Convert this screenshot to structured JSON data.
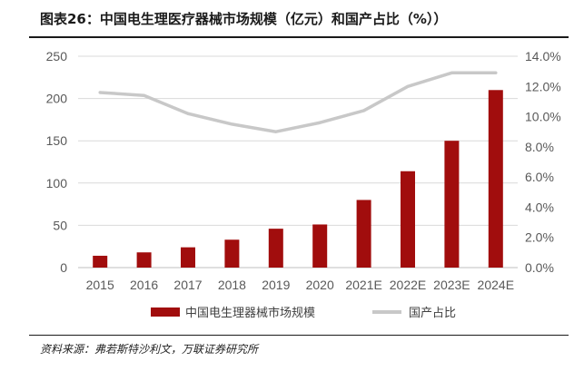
{
  "title": "图表26：中国电生理医疗器械市场规模（亿元）和国产占比（%））",
  "source": "资料来源：弗若斯特沙利文，万联证券研究所",
  "colors": {
    "bar": "#A10D0D",
    "line": "#C8C8C8",
    "grid": "#D9D9D9",
    "text": "#595959"
  },
  "chart_data": {
    "type": "bar+line",
    "categories": [
      "2015",
      "2016",
      "2017",
      "2018",
      "2019",
      "2020",
      "2021E",
      "2022E",
      "2023E",
      "2024E"
    ],
    "series": [
      {
        "name": "中国电生理器械市场规模",
        "type": "bar",
        "axis": "left",
        "values": [
          14,
          18,
          24,
          33,
          46,
          51,
          80,
          114,
          150,
          210
        ]
      },
      {
        "name": "国产占比",
        "type": "line",
        "axis": "right",
        "values": [
          11.6,
          11.4,
          10.2,
          9.5,
          9.0,
          9.6,
          10.4,
          12.0,
          12.9,
          12.9
        ]
      }
    ],
    "ylim": [
      0,
      250
    ],
    "yticks": [
      "0",
      "50",
      "100",
      "150",
      "200",
      "250"
    ],
    "y2lim": [
      0,
      14
    ],
    "y2ticks": [
      "0.0%",
      "2.0%",
      "4.0%",
      "6.0%",
      "8.0%",
      "10.0%",
      "12.0%",
      "14.0%"
    ],
    "grid": true,
    "legend_position": "bottom"
  }
}
